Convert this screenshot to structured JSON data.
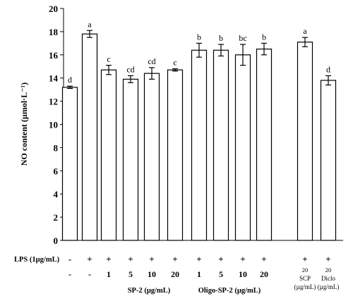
{
  "chart_data": {
    "type": "bar",
    "ylabel": "NO content (µmol·L⁻¹)",
    "ylim": [
      0,
      20
    ],
    "yticks": [
      0,
      2,
      4,
      6,
      8,
      10,
      12,
      14,
      16,
      18,
      20
    ],
    "grid": false,
    "bar_color": "#ffffff",
    "edge_color": "#000000",
    "bars": [
      {
        "value": 13.2,
        "error": 0.1,
        "letter": "d",
        "lps": "-",
        "dose": "-"
      },
      {
        "value": 17.8,
        "error": 0.3,
        "letter": "a",
        "lps": "+",
        "dose": "-"
      },
      {
        "value": 14.7,
        "error": 0.4,
        "letter": "c",
        "lps": "+",
        "dose": "1"
      },
      {
        "value": 13.9,
        "error": 0.3,
        "letter": "cd",
        "lps": "+",
        "dose": "5"
      },
      {
        "value": 14.4,
        "error": 0.5,
        "letter": "cd",
        "lps": "+",
        "dose": "10"
      },
      {
        "value": 14.7,
        "error": 0.1,
        "letter": "c",
        "lps": "+",
        "dose": "20"
      },
      {
        "value": 16.4,
        "error": 0.6,
        "letter": "b",
        "lps": "+",
        "dose": "1"
      },
      {
        "value": 16.4,
        "error": 0.5,
        "letter": "b",
        "lps": "+",
        "dose": "5"
      },
      {
        "value": 16.0,
        "error": 0.9,
        "letter": "bc",
        "lps": "+",
        "dose": "10"
      },
      {
        "value": 16.5,
        "error": 0.5,
        "letter": "b",
        "lps": "+",
        "dose": "20"
      },
      {
        "value": 17.1,
        "error": 0.4,
        "letter": "a",
        "lps": "+",
        "dose": "20",
        "sub": "SCP",
        "unit": "(µg/mL)"
      },
      {
        "value": 13.8,
        "error": 0.4,
        "letter": "d",
        "lps": "+",
        "dose": "20",
        "sub": "Diclo",
        "unit": "(µg/mL)"
      }
    ],
    "lps_label": "LPS (1µg/mL)",
    "groups": [
      {
        "label": "SP-2 (µg/mL)"
      },
      {
        "label": "Oligo-SP-2 (µg/mL)"
      }
    ]
  }
}
